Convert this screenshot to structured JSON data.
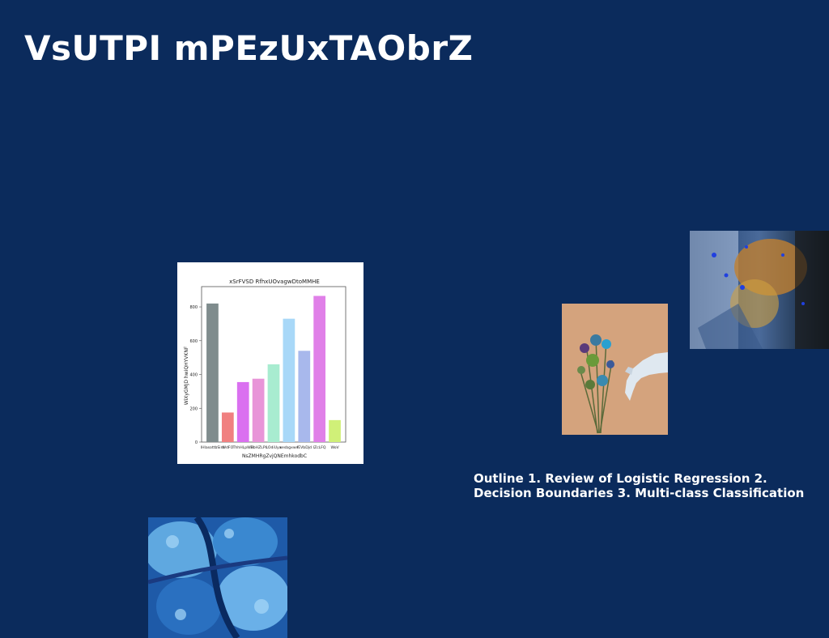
{
  "slide": {
    "title": "VsUTPI mPEzUxTAObrZ",
    "outline_text": "Outline 1. Review of Logistic Regression 2. Decision Boundaries 3. Multi-class Classification",
    "background": "#0b2b5c"
  },
  "images": {
    "top_right": {
      "icon": "abstract-blue-orange-streak-image"
    },
    "flowers": {
      "icon": "flowers-and-hand-image"
    },
    "bottom_left": {
      "icon": "blue-texture-image"
    }
  },
  "chart_data": {
    "type": "bar",
    "title": "xSrFVSD RfhxUOvagwDtoMMHE",
    "xlabel": "NsZMHRgZvjQNEmhkodbC",
    "ylabel": "WiXyGMJD hwiQHYVKNF",
    "categories": [
      "lHlasottbSim",
      "WdFO",
      "ThhHLpWB",
      "HbHZLPl",
      "LOdiUyx",
      "xesbgxwv",
      "fEVbDjd",
      "lZcLFQ",
      "WoV"
    ],
    "values": [
      820,
      175,
      355,
      375,
      460,
      730,
      540,
      865,
      130
    ],
    "colors": [
      "#7f8c8d",
      "#f08080",
      "#da70f0",
      "#e895d8",
      "#a8ecd0",
      "#a8d8f8",
      "#a8b8ec",
      "#e080e8",
      "#d0f078"
    ],
    "ylim": [
      0,
      920
    ],
    "yticks": [
      0,
      200,
      400,
      600,
      800
    ]
  }
}
